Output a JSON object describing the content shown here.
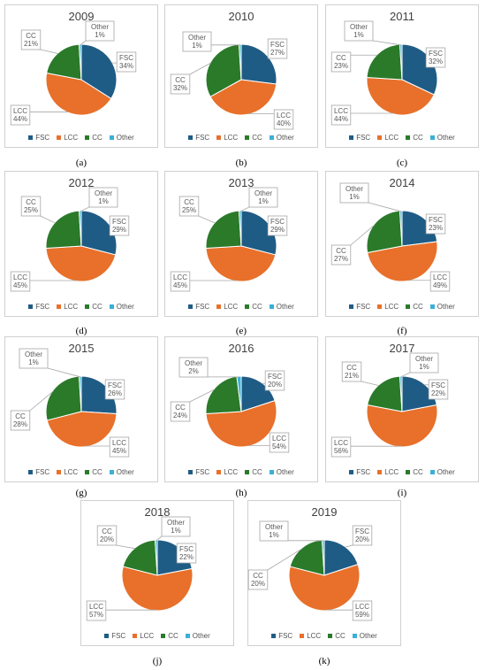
{
  "colors": {
    "FSC": "#1f5c85",
    "LCC": "#e8702a",
    "CC": "#2a7a2a",
    "Other": "#3ab0d6",
    "label_border": "#a6a6a6",
    "label_text": "#595959"
  },
  "legend": [
    "FSC",
    "LCC",
    "CC",
    "Other"
  ],
  "chart_data": [
    {
      "type": "pie",
      "title": "2009",
      "caption": "(a)",
      "categories": [
        "FSC",
        "LCC",
        "CC",
        "Other"
      ],
      "values": [
        34,
        44,
        21,
        1
      ],
      "labels": [
        "FSC\n34%",
        "LCC\n44%",
        "CC\n21%",
        "Other\n1%"
      ]
    },
    {
      "type": "pie",
      "title": "2010",
      "caption": "(b)",
      "categories": [
        "FSC",
        "LCC",
        "CC",
        "Other"
      ],
      "values": [
        27,
        40,
        32,
        1
      ],
      "labels": [
        "FSC\n27%",
        "LCC\n40%",
        "CC\n32%",
        "Other\n1%"
      ]
    },
    {
      "type": "pie",
      "title": "2011",
      "caption": "(c)",
      "categories": [
        "FSC",
        "LCC",
        "CC",
        "Other"
      ],
      "values": [
        32,
        44,
        23,
        1
      ],
      "labels": [
        "FSC\n32%",
        "LCC\n44%",
        "CC\n23%",
        "Other\n1%"
      ]
    },
    {
      "type": "pie",
      "title": "2012",
      "caption": "(d)",
      "categories": [
        "FSC",
        "LCC",
        "CC",
        "Other"
      ],
      "values": [
        29,
        45,
        25,
        1
      ],
      "labels": [
        "FSC\n29%",
        "LCC\n45%",
        "CC\n25%",
        "Other\n1%"
      ]
    },
    {
      "type": "pie",
      "title": "2013",
      "caption": "(e)",
      "categories": [
        "FSC",
        "LCC",
        "CC",
        "Other"
      ],
      "values": [
        29,
        45,
        25,
        1
      ],
      "labels": [
        "FSC\n29%",
        "LCC\n45%",
        "CC\n25%",
        "Other\n1%"
      ]
    },
    {
      "type": "pie",
      "title": "2014",
      "caption": "(f)",
      "categories": [
        "FSC",
        "LCC",
        "CC",
        "Other"
      ],
      "values": [
        23,
        49,
        27,
        1
      ],
      "labels": [
        "FSC\n23%",
        "LCC\n49%",
        "CC\n27%",
        "Other\n1%"
      ]
    },
    {
      "type": "pie",
      "title": "2015",
      "caption": "(g)",
      "categories": [
        "FSC",
        "LCC",
        "CC",
        "Other"
      ],
      "values": [
        26,
        45,
        28,
        1
      ],
      "labels": [
        "FSC\n26%",
        "LCC\n45%",
        "CC\n28%",
        "Other\n1%"
      ]
    },
    {
      "type": "pie",
      "title": "2016",
      "caption": "(h)",
      "categories": [
        "FSC",
        "LCC",
        "CC",
        "Other"
      ],
      "values": [
        20,
        54,
        24,
        2
      ],
      "labels": [
        "FSC\n20%",
        "LCC\n54%",
        "CC\n24%",
        "Other\n2%"
      ]
    },
    {
      "type": "pie",
      "title": "2017",
      "caption": "(i)",
      "categories": [
        "FSC",
        "LCC",
        "CC",
        "Other"
      ],
      "values": [
        22,
        56,
        21,
        1
      ],
      "labels": [
        "FSC\n22%",
        "LCC\n56%",
        "CC\n21%",
        "Other\n1%"
      ]
    },
    {
      "type": "pie",
      "title": "2018",
      "caption": "(j)",
      "categories": [
        "FSC",
        "LCC",
        "CC",
        "Other"
      ],
      "values": [
        22,
        57,
        20,
        1
      ],
      "labels": [
        "FSC\n22%",
        "LCC\n57%",
        "CC\n20%",
        "Other\n1%"
      ]
    },
    {
      "type": "pie",
      "title": "2019",
      "caption": "(k)",
      "categories": [
        "FSC",
        "LCC",
        "CC",
        "Other"
      ],
      "values": [
        20,
        59,
        20,
        1
      ],
      "labels": [
        "FSC\n20%",
        "LCC\n59%",
        "CC\n20%",
        "Other\n1%"
      ]
    }
  ]
}
